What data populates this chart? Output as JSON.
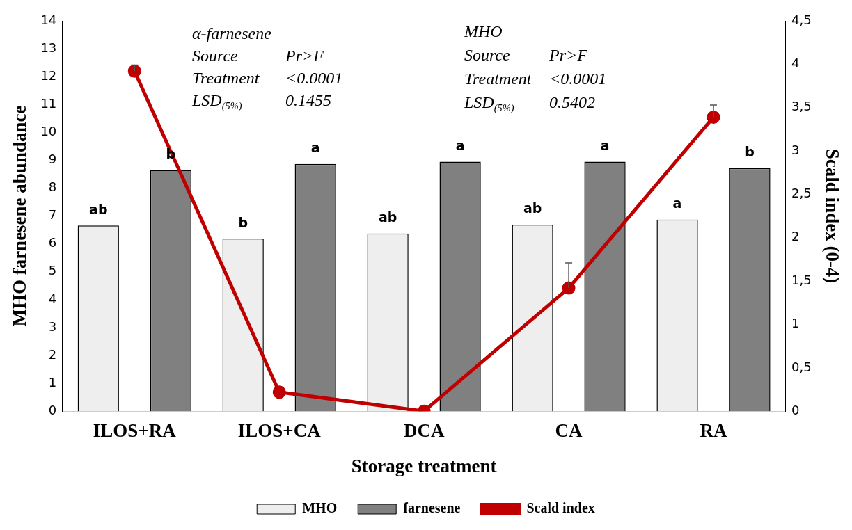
{
  "chart_data": {
    "type": "bar",
    "xlabel": "Storage treatment",
    "ylabel": "MHO farnesene abundance",
    "y2label": "Scald index (0-4)",
    "categories": [
      "ILOS+RA",
      "ILOS+CA",
      "DCA",
      "CA",
      "RA"
    ],
    "series": [
      {
        "name": "MHO",
        "color": "#eeeeee",
        "values": [
          6.66,
          6.19,
          6.37,
          6.69,
          6.87
        ]
      },
      {
        "name": "farnesene",
        "color": "#808080",
        "values": [
          8.65,
          8.87,
          8.95,
          8.95,
          8.72
        ]
      },
      {
        "name": "Scald index",
        "type": "line",
        "axis": "y2",
        "color": "#c00000",
        "marker": "circle",
        "values": [
          3.92,
          0.22,
          0,
          1.42,
          3.39
        ],
        "errors": [
          [
            3.92,
            3.99
          ],
          null,
          null,
          [
            1.42,
            1.71
          ],
          [
            3.39,
            3.53
          ]
        ]
      }
    ],
    "ylim": [
      0,
      14
    ],
    "yticks": [
      0,
      1,
      2,
      3,
      4,
      5,
      6,
      7,
      8,
      9,
      10,
      11,
      12,
      13,
      14
    ],
    "y2lim": [
      0,
      4.5
    ],
    "y2ticks": [
      0,
      {
        "value": 0.5,
        "label": "0,5"
      },
      1,
      {
        "value": 1.5,
        "label": "1,5"
      },
      2,
      {
        "value": 2.5,
        "label": "2,5"
      },
      3,
      {
        "value": 3.5,
        "label": "3,5"
      },
      4,
      {
        "value": 4.5,
        "label": "4,5"
      }
    ],
    "legend": "bottom",
    "grid": false,
    "annotations": [
      "α-farnesene",
      "Source\tPr>F",
      "Treatment\t<0.0001",
      "LSD$_{(5%)}$\t0.1455",
      "MHO",
      "Source\tPr>F",
      "Treatment\t<0.0001",
      "LSD$_{(5%)}$\t0.5402",
      "ab",
      "b",
      "b",
      "a",
      "ab",
      "a",
      "ab",
      "a",
      "a",
      "b"
    ]
  }
}
